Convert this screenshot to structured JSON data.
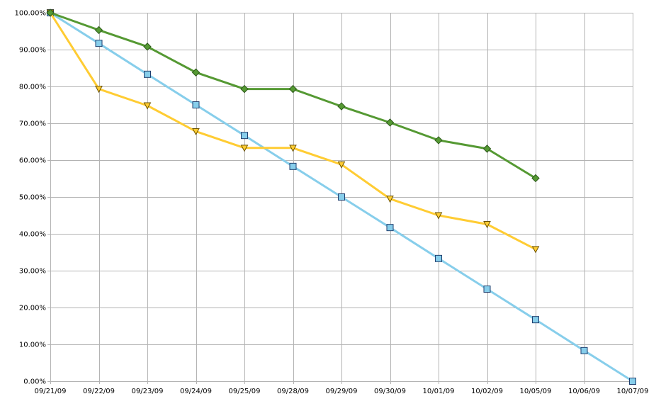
{
  "chart_data": {
    "type": "line",
    "categories": [
      "09/21/09",
      "09/22/09",
      "09/23/09",
      "09/24/09",
      "09/25/09",
      "09/28/09",
      "09/29/09",
      "09/30/09",
      "10/01/09",
      "10/02/09",
      "10/05/09",
      "10/06/09",
      "10/07/09"
    ],
    "ylim": [
      0,
      100
    ],
    "yticks": [
      "0.00%",
      "10.00%",
      "20.00%",
      "30.00%",
      "40.00%",
      "50.00%",
      "60.00%",
      "70.00%",
      "80.00%",
      "90.00%",
      "100.00%"
    ],
    "grid": true,
    "legend": "none",
    "series": [
      {
        "color": "#87ceeb",
        "marker": "square",
        "marker_fill": "#87ceeb",
        "values": [
          100,
          91.7,
          83.3,
          75.0,
          66.7,
          58.3,
          50.0,
          41.7,
          33.3,
          25.0,
          16.7,
          8.3,
          0.0
        ]
      },
      {
        "color": "#ffcc33",
        "marker": "triangle-down",
        "marker_fill": "#ffcc33",
        "values": [
          100,
          79.3,
          74.8,
          67.8,
          63.3,
          63.3,
          58.8,
          49.5,
          45.0,
          42.6,
          35.8,
          null,
          null
        ]
      },
      {
        "color": "#559933",
        "marker": "diamond",
        "marker_fill": "#559933",
        "values": [
          100,
          95.3,
          90.8,
          83.8,
          79.3,
          79.3,
          74.6,
          70.2,
          65.4,
          63.1,
          55.1,
          null,
          null
        ]
      }
    ]
  }
}
